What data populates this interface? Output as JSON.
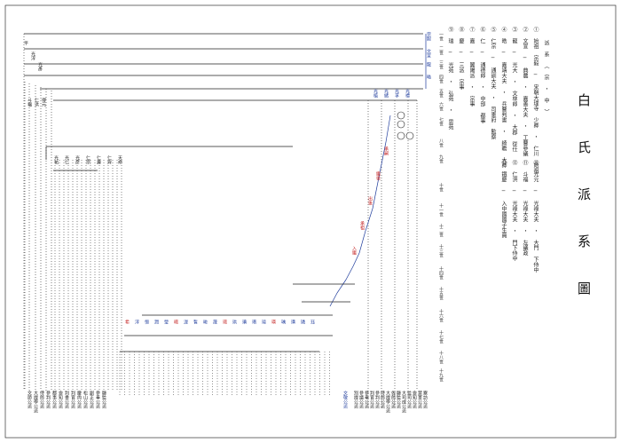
{
  "title": "白 氏 派 系 圖",
  "legend": {
    "header": "派 系 （ 宗 ・ 中 ）",
    "entries": [
      "① 始祖 宗毅 ─ 宋朝大理寺 少卿 ・ 仁川 始祖",
      "② 文宣 ─ 典農 ・ 嘉善大夫 ・ 工曹參議",
      "③ 龍 ─ 光大 ・ 文林郎 ・ 大郡 從仕",
      "④ 晧 ─ 嘉靖大夫 ・ 兵曹判書 ・ 綺瞻 大卿",
      "⑤ 仁宗 ─ 通訓大夫 ・ 司憲府 監察",
      "⑥ 仁 ─ 通德郎 ・ 中部 都事",
      "⑦ 嘉 ─ 翼陽派 ・ 宗事",
      "⑧ 慶 ─ 三派 宗事",
      "⑨ 瑞 ─ 光苑 ・ 弘苑 ・ 思苑"
    ],
    "col2": [
      "⑩ 光元 ─ 光祿大夫 ・ 大門 下侍中",
      "⑪ 斗福 ─ 光祿大夫 ・ 左議政",
      "⑫ 仁洪 ─ 光祿大夫 ・ 門下侍中",
      "⑬ 鐵慶 ─ 入中國國子生員"
    ]
  },
  "generations": [
    "一世",
    "二世",
    "三世",
    "四世",
    "五世",
    "六世",
    "七世",
    "八世",
    "九世",
    "十世",
    "十一世",
    "十二世",
    "十三世",
    "十四世",
    "十五世",
    "十六世",
    "十七世",
    "十八世",
    "十九世"
  ],
  "names": {
    "root": "宗毅",
    "g2": "文宣",
    "g3": "龍",
    "g4": "晧",
    "left_top": [
      "平",
      "光淳",
      "光彥"
    ],
    "left_branch": [
      "斗福",
      "仁洪",
      "得元"
    ],
    "mid_branch": [
      "光祐",
      "光仁",
      "光彦",
      "仁宗",
      "仁壽",
      "仁齊",
      "天命"
    ],
    "right_branch": [
      "光植",
      "光緒",
      "光孚",
      "光禮"
    ],
    "red_marks": [
      "承嗣",
      "繼後",
      "出後",
      "承祖",
      "入繼"
    ],
    "lower_fan": [
      "希",
      "淳",
      "恒",
      "潤",
      "瑩",
      "暻",
      "湜",
      "晳",
      "晙",
      "晟",
      "璟",
      "珙",
      "琠",
      "瑨",
      "瑄",
      "瑛",
      "瑀",
      "璜",
      "璘",
      "珏"
    ]
  },
  "footer": {
    "left": [
      "文節公派",
      "大提學公派",
      "侍郎公派",
      "參判公派",
      "都事公派",
      "僉知公派",
      "判書公派",
      "判官公派",
      "慶尙公派",
      "松山公派",
      "副正公派",
      "參奉公派",
      "縣監公派"
    ],
    "center": [
      "文敬公派"
    ],
    "right": [
      "別提公派",
      "參議公派",
      "參奉公派",
      "判官公派",
      "參判公派",
      "侍郎公派",
      "大提學公派",
      "佐郎公派",
      "縣監公派",
      "大司成公派",
      "監司公派",
      "僉知公派",
      "禁軍公派",
      "察訪公派"
    ]
  }
}
